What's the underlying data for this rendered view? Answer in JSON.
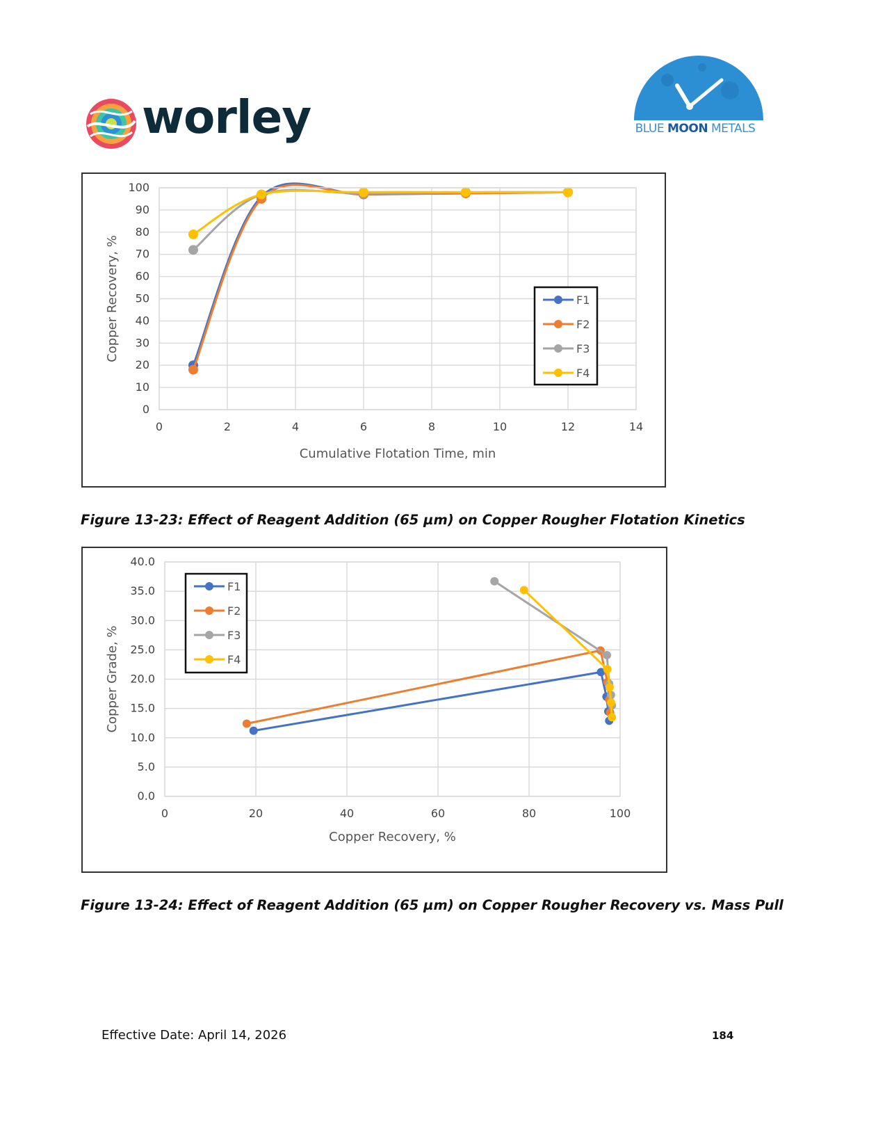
{
  "header": {
    "left_logo_text": "worley",
    "right_logo_text_part1": "BLUE ",
    "right_logo_text_part2": "MOON",
    "right_logo_text_part3": " METALS"
  },
  "colors": {
    "F1": "#4472c4",
    "F2": "#ed7d31",
    "F3": "#a5a5a5",
    "F4": "#ffc000"
  },
  "chart_data": [
    {
      "type": "line",
      "xlabel": "Cumulative Flotation Time, min",
      "ylabel": "Copper Recovery, %",
      "xlim": [
        0,
        14
      ],
      "ylim": [
        0,
        100
      ],
      "xticks": [
        0,
        2,
        4,
        6,
        8,
        10,
        12,
        14
      ],
      "yticks": [
        0,
        10,
        20,
        30,
        40,
        50,
        60,
        70,
        80,
        90,
        100
      ],
      "grid": true,
      "smooth": true,
      "legend_position": "right",
      "series": [
        {
          "name": "F1",
          "x": [
            1,
            3,
            6,
            9,
            12
          ],
          "y": [
            20,
            96,
            97,
            97.5,
            98
          ]
        },
        {
          "name": "F2",
          "x": [
            1,
            3,
            6,
            9,
            12
          ],
          "y": [
            18,
            95,
            97,
            97.5,
            98
          ]
        },
        {
          "name": "F3",
          "x": [
            1,
            3,
            6,
            9,
            12
          ],
          "y": [
            72,
            97,
            97.5,
            98,
            98
          ]
        },
        {
          "name": "F4",
          "x": [
            1,
            3,
            6,
            9,
            12
          ],
          "y": [
            79,
            97,
            98,
            98,
            98
          ]
        }
      ]
    },
    {
      "type": "scatter",
      "xlabel": "Copper Recovery, %",
      "ylabel": "Copper Grade, %",
      "xlim": [
        0,
        100
      ],
      "ylim": [
        0,
        40
      ],
      "xticks": [
        0,
        20,
        40,
        60,
        80,
        100
      ],
      "yticks": [
        "0.0",
        "5.0",
        "10.0",
        "15.0",
        "20.0",
        "25.0",
        "30.0",
        "35.0",
        "40.0"
      ],
      "grid": true,
      "legend_position": "top-left",
      "series": [
        {
          "name": "F1",
          "x": [
            19.5,
            95.8,
            97.0,
            97.4,
            97.6
          ],
          "y": [
            11.2,
            21.2,
            17.0,
            14.5,
            12.9
          ]
        },
        {
          "name": "F2",
          "x": [
            18.0,
            95.7,
            97.2,
            97.6,
            97.8
          ],
          "y": [
            12.4,
            24.9,
            19.5,
            16.5,
            14.3
          ]
        },
        {
          "name": "F3",
          "x": [
            72.4,
            97.1,
            97.6,
            98.0,
            98.2
          ],
          "y": [
            36.7,
            24.1,
            19.2,
            17.3,
            15.5
          ]
        },
        {
          "name": "F4",
          "x": [
            78.9,
            97.2,
            97.7,
            98.0,
            98.2
          ],
          "y": [
            35.2,
            21.7,
            18.6,
            16.0,
            13.5
          ]
        }
      ]
    }
  ],
  "captions": {
    "figure1": "Figure 13-23: Effect of Reagent Addition (65 µm) on Copper Rougher Flotation Kinetics",
    "figure2": "Figure 13-24: Effect of Reagent Addition (65 µm) on Copper Rougher Recovery vs. Mass Pull"
  },
  "footer": {
    "effective_date": "Effective Date: April 14, 2026",
    "page_number": "184"
  }
}
